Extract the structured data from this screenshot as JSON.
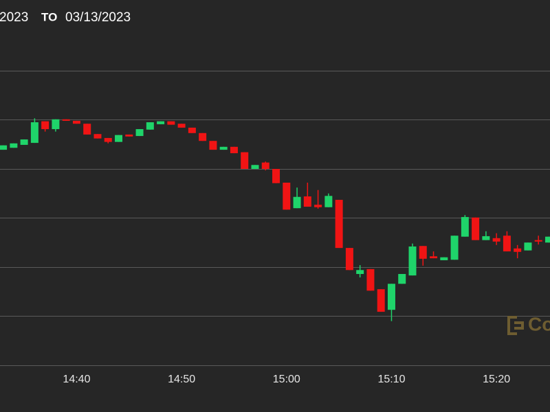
{
  "chart_data": {
    "type": "candlestick",
    "range_from": "2023",
    "range_to_label": "TO",
    "range_to": "03/13/2023",
    "watermark": "Co",
    "up_color": "#1fd46a",
    "down_color": "#f01414",
    "grid": true,
    "xlim": [
      872.7,
      925.1
    ],
    "xticks": [
      {
        "value": 880,
        "label": "14:40"
      },
      {
        "value": 890,
        "label": "14:50"
      },
      {
        "value": 900,
        "label": "15:00"
      },
      {
        "value": 910,
        "label": "15:10"
      },
      {
        "value": 920,
        "label": "15:20"
      }
    ],
    "ylim": [
      0,
      7.44
    ],
    "yticks": [
      0,
      1,
      2,
      3,
      4,
      5,
      6
    ],
    "x": [
      873,
      874,
      875,
      876,
      877,
      878,
      879,
      880,
      881,
      882,
      883,
      884,
      885,
      886,
      887,
      888,
      889,
      890,
      891,
      892,
      893,
      894,
      895,
      896,
      897,
      898,
      899,
      900,
      901,
      902,
      903,
      904,
      905,
      906,
      907,
      908,
      909,
      910,
      911,
      912,
      913,
      914,
      915,
      916,
      917,
      918,
      919,
      920,
      921,
      922,
      923,
      924,
      925
    ],
    "open": [
      4.39,
      4.43,
      4.49,
      4.53,
      4.97,
      4.81,
      5.01,
      4.98,
      4.92,
      4.71,
      4.63,
      4.55,
      4.7,
      4.67,
      4.8,
      4.91,
      4.97,
      4.92,
      4.84,
      4.73,
      4.57,
      4.39,
      4.45,
      4.34,
      4.0,
      4.13,
      4.0,
      3.72,
      3.2,
      3.44,
      3.27,
      3.22,
      3.37,
      2.39,
      1.86,
      1.96,
      1.55,
      1.13,
      1.66,
      1.83,
      2.43,
      2.22,
      2.14,
      2.15,
      2.62,
      3.01,
      2.55,
      2.59,
      2.64,
      2.38,
      2.34,
      2.55,
      2.5
    ],
    "high": [
      4.48,
      4.52,
      4.6,
      5.03,
      4.97,
      5.01,
      5.01,
      4.98,
      4.92,
      4.71,
      4.63,
      4.69,
      4.7,
      4.81,
      4.95,
      4.97,
      4.97,
      4.92,
      4.84,
      4.73,
      4.57,
      4.45,
      4.45,
      4.34,
      4.08,
      4.15,
      4.0,
      3.72,
      3.62,
      3.72,
      3.57,
      3.5,
      3.37,
      2.39,
      2.04,
      1.96,
      1.55,
      1.66,
      1.86,
      2.48,
      2.43,
      2.32,
      2.2,
      2.64,
      3.06,
      3.01,
      2.73,
      2.69,
      2.73,
      2.45,
      2.5,
      2.64,
      2.62
    ],
    "low": [
      4.39,
      4.43,
      4.49,
      4.53,
      4.76,
      4.76,
      4.98,
      4.92,
      4.7,
      4.62,
      4.52,
      4.55,
      4.66,
      4.67,
      4.8,
      4.91,
      4.9,
      4.84,
      4.73,
      4.57,
      4.39,
      4.39,
      4.32,
      4.0,
      4.0,
      3.97,
      3.71,
      3.17,
      3.2,
      3.23,
      3.19,
      3.22,
      2.39,
      1.94,
      1.79,
      1.52,
      1.09,
      0.9,
      1.66,
      1.83,
      2.03,
      2.18,
      2.14,
      2.15,
      2.62,
      2.55,
      2.55,
      2.45,
      2.32,
      2.18,
      2.34,
      2.46,
      2.5
    ],
    "close": [
      4.48,
      4.52,
      4.6,
      4.95,
      4.81,
      5.01,
      4.98,
      4.92,
      4.7,
      4.62,
      4.55,
      4.69,
      4.66,
      4.81,
      4.95,
      4.97,
      4.9,
      4.84,
      4.73,
      4.57,
      4.39,
      4.45,
      4.32,
      4.0,
      4.08,
      4.0,
      3.71,
      3.17,
      3.43,
      3.23,
      3.22,
      3.45,
      2.39,
      1.94,
      1.94,
      1.52,
      1.09,
      1.66,
      1.86,
      2.42,
      2.17,
      2.18,
      2.2,
      2.64,
      3.02,
      2.55,
      2.63,
      2.52,
      2.32,
      2.31,
      2.5,
      2.52,
      2.62
    ]
  }
}
